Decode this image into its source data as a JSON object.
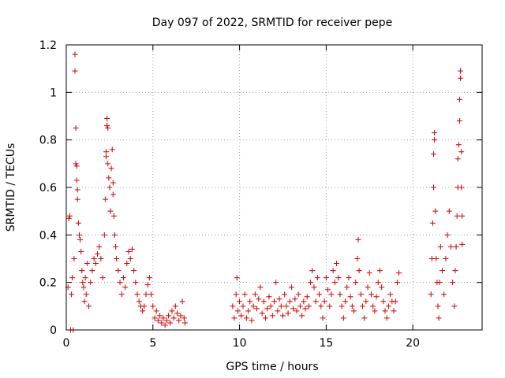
{
  "chart_data": {
    "type": "scatter",
    "title": "Day 097 of 2022, SRMTID for receiver pepe",
    "xlabel": "GPS time / hours",
    "ylabel": "SRMTID / TECUs",
    "xlim": [
      0,
      24
    ],
    "ylim": [
      0,
      1.2
    ],
    "xticks": [
      0,
      5,
      10,
      15,
      20
    ],
    "yticks": [
      0,
      0.2,
      0.4,
      0.6,
      0.8,
      1,
      1.2
    ],
    "xtick_labels": [
      "0",
      "5",
      "10",
      "15",
      "20"
    ],
    "ytick_labels": [
      "0",
      "0.2",
      "0.4",
      "0.6",
      "0.8",
      "1",
      "1.2"
    ],
    "grid": true,
    "marker": "+",
    "marker_color": "#d40000",
    "series": [
      {
        "name": "SRMTID",
        "points": [
          [
            0.1,
            0.18
          ],
          [
            0.15,
            0.47
          ],
          [
            0.2,
            0.48
          ],
          [
            0.25,
            0.0
          ],
          [
            0.3,
            0.15
          ],
          [
            0.35,
            0.22
          ],
          [
            0.4,
            0.0
          ],
          [
            0.45,
            0.3
          ],
          [
            0.5,
            1.16
          ],
          [
            0.5,
            1.09
          ],
          [
            0.55,
            0.85
          ],
          [
            0.55,
            0.7
          ],
          [
            0.6,
            0.69
          ],
          [
            0.6,
            0.63
          ],
          [
            0.65,
            0.59
          ],
          [
            0.65,
            0.55
          ],
          [
            0.7,
            0.45
          ],
          [
            0.75,
            0.4
          ],
          [
            0.8,
            0.38
          ],
          [
            0.85,
            0.33
          ],
          [
            0.9,
            0.25
          ],
          [
            0.95,
            0.2
          ],
          [
            1.0,
            0.18
          ],
          [
            1.05,
            0.12
          ],
          [
            1.1,
            0.22
          ],
          [
            1.15,
            0.15
          ],
          [
            1.2,
            0.28
          ],
          [
            1.3,
            0.1
          ],
          [
            1.4,
            0.2
          ],
          [
            1.5,
            0.25
          ],
          [
            1.6,
            0.3
          ],
          [
            1.7,
            0.28
          ],
          [
            1.8,
            0.32
          ],
          [
            1.9,
            0.35
          ],
          [
            2.0,
            0.3
          ],
          [
            2.1,
            0.22
          ],
          [
            2.2,
            0.4
          ],
          [
            2.25,
            0.55
          ],
          [
            2.3,
            0.73
          ],
          [
            2.3,
            0.75
          ],
          [
            2.35,
            0.89
          ],
          [
            2.35,
            0.86
          ],
          [
            2.4,
            0.85
          ],
          [
            2.4,
            0.7
          ],
          [
            2.45,
            0.64
          ],
          [
            2.5,
            0.6
          ],
          [
            2.55,
            0.5
          ],
          [
            2.6,
            0.68
          ],
          [
            2.65,
            0.76
          ],
          [
            2.7,
            0.62
          ],
          [
            2.7,
            0.57
          ],
          [
            2.75,
            0.48
          ],
          [
            2.8,
            0.4
          ],
          [
            2.85,
            0.35
          ],
          [
            2.9,
            0.3
          ],
          [
            3.0,
            0.25
          ],
          [
            3.1,
            0.2
          ],
          [
            3.2,
            0.15
          ],
          [
            3.3,
            0.22
          ],
          [
            3.4,
            0.18
          ],
          [
            3.5,
            0.28
          ],
          [
            3.6,
            0.33
          ],
          [
            3.7,
            0.3
          ],
          [
            3.8,
            0.34
          ],
          [
            3.9,
            0.25
          ],
          [
            4.0,
            0.2
          ],
          [
            4.1,
            0.15
          ],
          [
            4.2,
            0.12
          ],
          [
            4.3,
            0.1
          ],
          [
            4.4,
            0.08
          ],
          [
            4.5,
            0.1
          ],
          [
            4.6,
            0.15
          ],
          [
            4.7,
            0.19
          ],
          [
            4.8,
            0.22
          ],
          [
            4.9,
            0.15
          ],
          [
            5.0,
            0.1
          ],
          [
            5.1,
            0.05
          ],
          [
            5.2,
            0.08
          ],
          [
            5.3,
            0.04
          ],
          [
            5.4,
            0.06
          ],
          [
            5.5,
            0.03
          ],
          [
            5.6,
            0.05
          ],
          [
            5.7,
            0.02
          ],
          [
            5.8,
            0.04
          ],
          [
            5.9,
            0.06
          ],
          [
            6.0,
            0.03
          ],
          [
            6.1,
            0.08
          ],
          [
            6.2,
            0.05
          ],
          [
            6.3,
            0.1
          ],
          [
            6.4,
            0.07
          ],
          [
            6.5,
            0.04
          ],
          [
            6.6,
            0.06
          ],
          [
            6.7,
            0.12
          ],
          [
            6.8,
            0.05
          ],
          [
            6.85,
            0.03
          ],
          [
            9.6,
            0.1
          ],
          [
            9.7,
            0.05
          ],
          [
            9.8,
            0.15
          ],
          [
            9.85,
            0.22
          ],
          [
            9.9,
            0.08
          ],
          [
            10.0,
            0.12
          ],
          [
            10.1,
            0.06
          ],
          [
            10.2,
            0.1
          ],
          [
            10.3,
            0.15
          ],
          [
            10.4,
            0.05
          ],
          [
            10.5,
            0.08
          ],
          [
            10.6,
            0.12
          ],
          [
            10.7,
            0.04
          ],
          [
            10.8,
            0.1
          ],
          [
            10.9,
            0.15
          ],
          [
            11.0,
            0.09
          ],
          [
            11.1,
            0.13
          ],
          [
            11.2,
            0.18
          ],
          [
            11.3,
            0.07
          ],
          [
            11.4,
            0.12
          ],
          [
            11.5,
            0.05
          ],
          [
            11.6,
            0.09
          ],
          [
            11.7,
            0.14
          ],
          [
            11.8,
            0.1
          ],
          [
            11.9,
            0.06
          ],
          [
            12.0,
            0.12
          ],
          [
            12.1,
            0.2
          ],
          [
            12.2,
            0.08
          ],
          [
            12.3,
            0.13
          ],
          [
            12.4,
            0.1
          ],
          [
            12.5,
            0.06
          ],
          [
            12.6,
            0.15
          ],
          [
            12.7,
            0.1
          ],
          [
            12.8,
            0.07
          ],
          [
            12.9,
            0.12
          ],
          [
            13.0,
            0.18
          ],
          [
            13.1,
            0.09
          ],
          [
            13.2,
            0.13
          ],
          [
            13.3,
            0.08
          ],
          [
            13.4,
            0.15
          ],
          [
            13.5,
            0.1
          ],
          [
            13.6,
            0.06
          ],
          [
            13.7,
            0.12
          ],
          [
            13.8,
            0.09
          ],
          [
            13.9,
            0.14
          ],
          [
            14.0,
            0.1
          ],
          [
            14.1,
            0.2
          ],
          [
            14.2,
            0.25
          ],
          [
            14.3,
            0.18
          ],
          [
            14.4,
            0.12
          ],
          [
            14.5,
            0.22
          ],
          [
            14.6,
            0.15
          ],
          [
            14.7,
            0.1
          ],
          [
            14.8,
            0.05
          ],
          [
            14.9,
            0.12
          ],
          [
            15.0,
            0.22
          ],
          [
            15.1,
            0.17
          ],
          [
            15.2,
            0.1
          ],
          [
            15.3,
            0.15
          ],
          [
            15.4,
            0.25
          ],
          [
            15.5,
            0.2
          ],
          [
            15.6,
            0.28
          ],
          [
            15.7,
            0.22
          ],
          [
            15.8,
            0.15
          ],
          [
            15.9,
            0.1
          ],
          [
            16.0,
            0.05
          ],
          [
            16.1,
            0.12
          ],
          [
            16.2,
            0.18
          ],
          [
            16.3,
            0.22
          ],
          [
            16.4,
            0.14
          ],
          [
            16.5,
            0.1
          ],
          [
            16.6,
            0.08
          ],
          [
            16.7,
            0.2
          ],
          [
            16.8,
            0.3
          ],
          [
            16.85,
            0.38
          ],
          [
            16.9,
            0.25
          ],
          [
            17.0,
            0.15
          ],
          [
            17.1,
            0.1
          ],
          [
            17.2,
            0.05
          ],
          [
            17.3,
            0.12
          ],
          [
            17.4,
            0.18
          ],
          [
            17.5,
            0.24
          ],
          [
            17.6,
            0.15
          ],
          [
            17.7,
            0.1
          ],
          [
            17.8,
            0.08
          ],
          [
            17.9,
            0.14
          ],
          [
            18.0,
            0.2
          ],
          [
            18.1,
            0.25
          ],
          [
            18.2,
            0.18
          ],
          [
            18.3,
            0.12
          ],
          [
            18.4,
            0.08
          ],
          [
            18.5,
            0.05
          ],
          [
            18.6,
            0.1
          ],
          [
            18.7,
            0.15
          ],
          [
            18.8,
            0.12
          ],
          [
            18.9,
            0.08
          ],
          [
            19.0,
            0.12
          ],
          [
            19.1,
            0.2
          ],
          [
            19.2,
            0.24
          ],
          [
            21.05,
            0.15
          ],
          [
            21.1,
            0.3
          ],
          [
            21.15,
            0.45
          ],
          [
            21.2,
            0.6
          ],
          [
            21.2,
            0.74
          ],
          [
            21.25,
            0.8
          ],
          [
            21.25,
            0.83
          ],
          [
            21.3,
            0.5
          ],
          [
            21.35,
            0.3
          ],
          [
            21.4,
            0.2
          ],
          [
            21.45,
            0.1
          ],
          [
            21.5,
            0.05
          ],
          [
            21.55,
            0.2
          ],
          [
            21.6,
            0.35
          ],
          [
            21.7,
            0.25
          ],
          [
            21.8,
            0.15
          ],
          [
            21.9,
            0.3
          ],
          [
            22.0,
            0.4
          ],
          [
            22.1,
            0.5
          ],
          [
            22.2,
            0.35
          ],
          [
            22.3,
            0.2
          ],
          [
            22.4,
            0.1
          ],
          [
            22.45,
            0.25
          ],
          [
            22.5,
            0.35
          ],
          [
            22.55,
            0.48
          ],
          [
            22.6,
            0.6
          ],
          [
            22.6,
            0.72
          ],
          [
            22.65,
            0.78
          ],
          [
            22.7,
            0.88
          ],
          [
            22.7,
            0.97
          ],
          [
            22.75,
            1.06
          ],
          [
            22.75,
            1.09
          ],
          [
            22.8,
            0.75
          ],
          [
            22.8,
            0.6
          ],
          [
            22.85,
            0.48
          ],
          [
            22.85,
            0.36
          ]
        ]
      }
    ]
  }
}
